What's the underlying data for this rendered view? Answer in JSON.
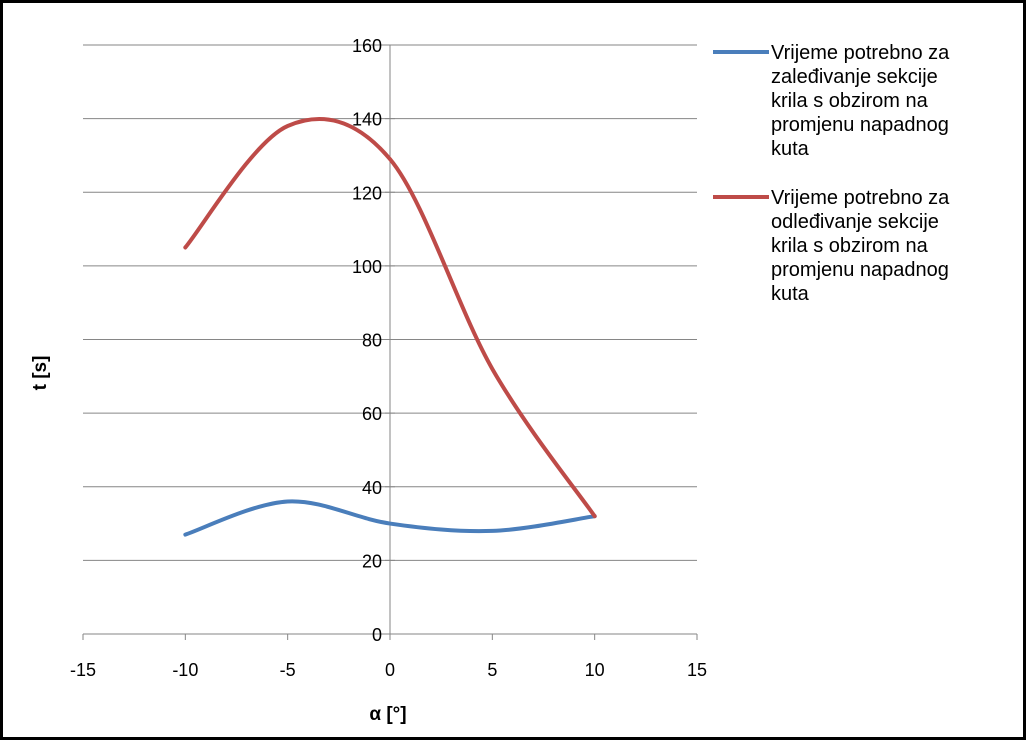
{
  "chart_data": {
    "type": "line",
    "xlabel": "α [°]",
    "ylabel": "t [s]",
    "xlim": [
      -15,
      15
    ],
    "ylim": [
      0,
      160
    ],
    "x_ticks": [
      "-15",
      "-10",
      "-5",
      "0",
      "5",
      "10",
      "15"
    ],
    "y_ticks": [
      "0",
      "20",
      "40",
      "60",
      "80",
      "100",
      "120",
      "140",
      "160"
    ],
    "grid": "horizontal major gridlines",
    "legend_position": "right",
    "smooth": true,
    "x": [
      -10,
      -5,
      0,
      5,
      10
    ],
    "series": [
      {
        "name": [
          "Vrijeme potrebno za",
          "zaleđivanje sekcije",
          "krila s obzirom na",
          "promjenu napadnog",
          "kuta"
        ],
        "color": "#4a7ebb",
        "values": [
          27,
          36,
          30,
          28,
          32
        ]
      },
      {
        "name": [
          "Vrijeme potrebno za",
          "odleđivanje sekcije",
          "krila s obzirom na",
          "promjenu napadnog",
          "kuta"
        ],
        "color": "#be4b48",
        "values": [
          105,
          138,
          129,
          72,
          32
        ]
      }
    ]
  }
}
